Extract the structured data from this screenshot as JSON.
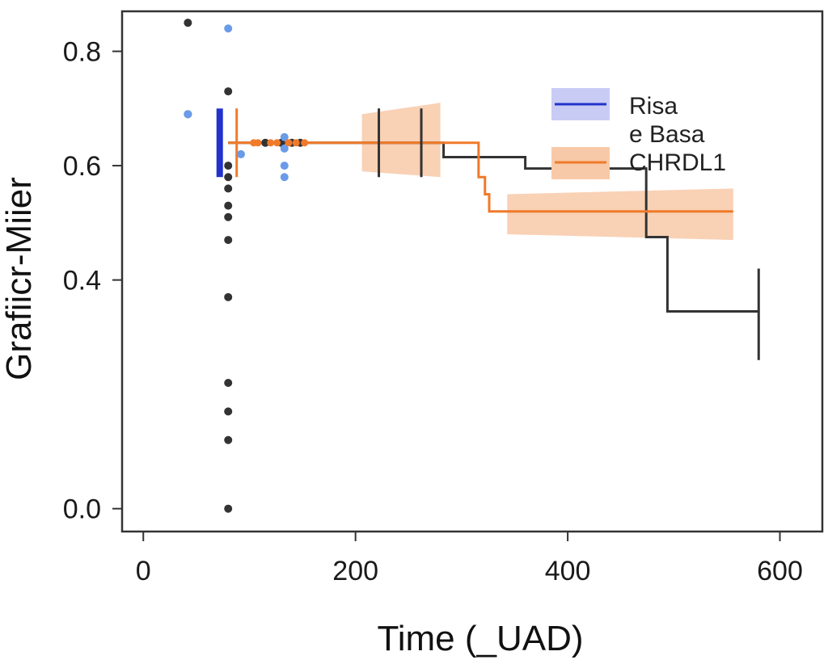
{
  "chart_data": {
    "type": "line",
    "title": "",
    "xlabel": "Time (_UAD)",
    "ylabel": "Grafiicr-Miier",
    "xlim": [
      -20,
      640
    ],
    "ylim": [
      -0.04,
      0.87
    ],
    "x_ticks": [
      0,
      200,
      400,
      600
    ],
    "x_tick_labels": [
      "0",
      "200",
      "400",
      "600"
    ],
    "y_ticks": [
      0.0,
      0.4,
      0.6,
      0.8
    ],
    "y_tick_labels": [
      "0.0",
      "0.4",
      "0.6",
      "0.8"
    ],
    "grid": false,
    "legend_position": "top-right",
    "legend": [
      {
        "label": "Risa",
        "color": "#2233cc"
      },
      {
        "label": "e Basa",
        "color": ""
      },
      {
        "label": "CHRDL1",
        "color": "#f07a2a"
      }
    ],
    "colors": {
      "black_series": "#333333",
      "blue_series": "#2233cc",
      "blue_points": "#6a9be8",
      "orange_series": "#f07a2a",
      "orange_band": "#f8c9a8",
      "blue_band": "#c8ccf4",
      "axis": "#333333"
    },
    "series": [
      {
        "name": "Black step curve",
        "color": "#333333",
        "steps": [
          [
            80,
            0.64
          ],
          [
            283,
            0.64
          ],
          [
            283,
            0.615
          ],
          [
            360,
            0.615
          ],
          [
            360,
            0.595
          ],
          [
            474,
            0.595
          ],
          [
            474,
            0.475
          ],
          [
            494,
            0.475
          ],
          [
            494,
            0.345
          ],
          [
            580,
            0.345
          ]
        ],
        "censor_marks": [
          {
            "x": 222,
            "y_low": 0.58,
            "y_high": 0.7
          },
          {
            "x": 262,
            "y_low": 0.58,
            "y_high": 0.7
          },
          {
            "x": 580,
            "y_low": 0.26,
            "y_high": 0.42
          }
        ],
        "points": [
          {
            "x": 42,
            "y": 0.85
          },
          {
            "x": 80,
            "y": 0.73
          },
          {
            "x": 80,
            "y": 0.6
          },
          {
            "x": 80,
            "y": 0.58
          },
          {
            "x": 80,
            "y": 0.56
          },
          {
            "x": 80,
            "y": 0.53
          },
          {
            "x": 80,
            "y": 0.51
          },
          {
            "x": 80,
            "y": 0.47
          },
          {
            "x": 80,
            "y": 0.37
          },
          {
            "x": 80,
            "y": 0.22
          },
          {
            "x": 80,
            "y": 0.17
          },
          {
            "x": 80,
            "y": 0.12
          },
          {
            "x": 80,
            "y": 0.0
          },
          {
            "x": 42,
            "y": 0.69
          },
          {
            "x": 115,
            "y": 0.64
          },
          {
            "x": 130,
            "y": 0.64
          },
          {
            "x": 140,
            "y": 0.64
          },
          {
            "x": 148,
            "y": 0.64
          }
        ]
      },
      {
        "name": "Risa",
        "color": "#2233cc",
        "vertical_bar": {
          "x": 72,
          "y_low": 0.58,
          "y_high": 0.7
        },
        "points": [
          {
            "x": 80,
            "y": 0.84
          },
          {
            "x": 133,
            "y": 0.65
          },
          {
            "x": 133,
            "y": 0.63
          },
          {
            "x": 92,
            "y": 0.62
          },
          {
            "x": 133,
            "y": 0.6
          },
          {
            "x": 133,
            "y": 0.58
          },
          {
            "x": 42,
            "y": 0.69
          }
        ]
      },
      {
        "name": "CHRDL1",
        "color": "#f07a2a",
        "steps": [
          [
            80,
            0.64
          ],
          [
            316,
            0.64
          ],
          [
            316,
            0.58
          ],
          [
            322,
            0.58
          ],
          [
            322,
            0.55
          ],
          [
            326,
            0.55
          ],
          [
            326,
            0.52
          ],
          [
            556,
            0.52
          ]
        ],
        "bands": [
          {
            "x": [
              206,
              280
            ],
            "low": [
              0.59,
              0.58
            ],
            "high": [
              0.69,
              0.71
            ]
          },
          {
            "x": [
              343,
              556
            ],
            "low": [
              0.48,
              0.47
            ],
            "high": [
              0.55,
              0.56
            ]
          }
        ],
        "censor_marks": [
          {
            "x": 88,
            "y_low": 0.58,
            "y_high": 0.7
          }
        ],
        "points": [
          {
            "x": 104,
            "y": 0.64
          },
          {
            "x": 108,
            "y": 0.64
          },
          {
            "x": 120,
            "y": 0.64
          },
          {
            "x": 126,
            "y": 0.64
          },
          {
            "x": 137,
            "y": 0.64
          },
          {
            "x": 144,
            "y": 0.64
          },
          {
            "x": 152,
            "y": 0.64
          }
        ]
      }
    ]
  }
}
